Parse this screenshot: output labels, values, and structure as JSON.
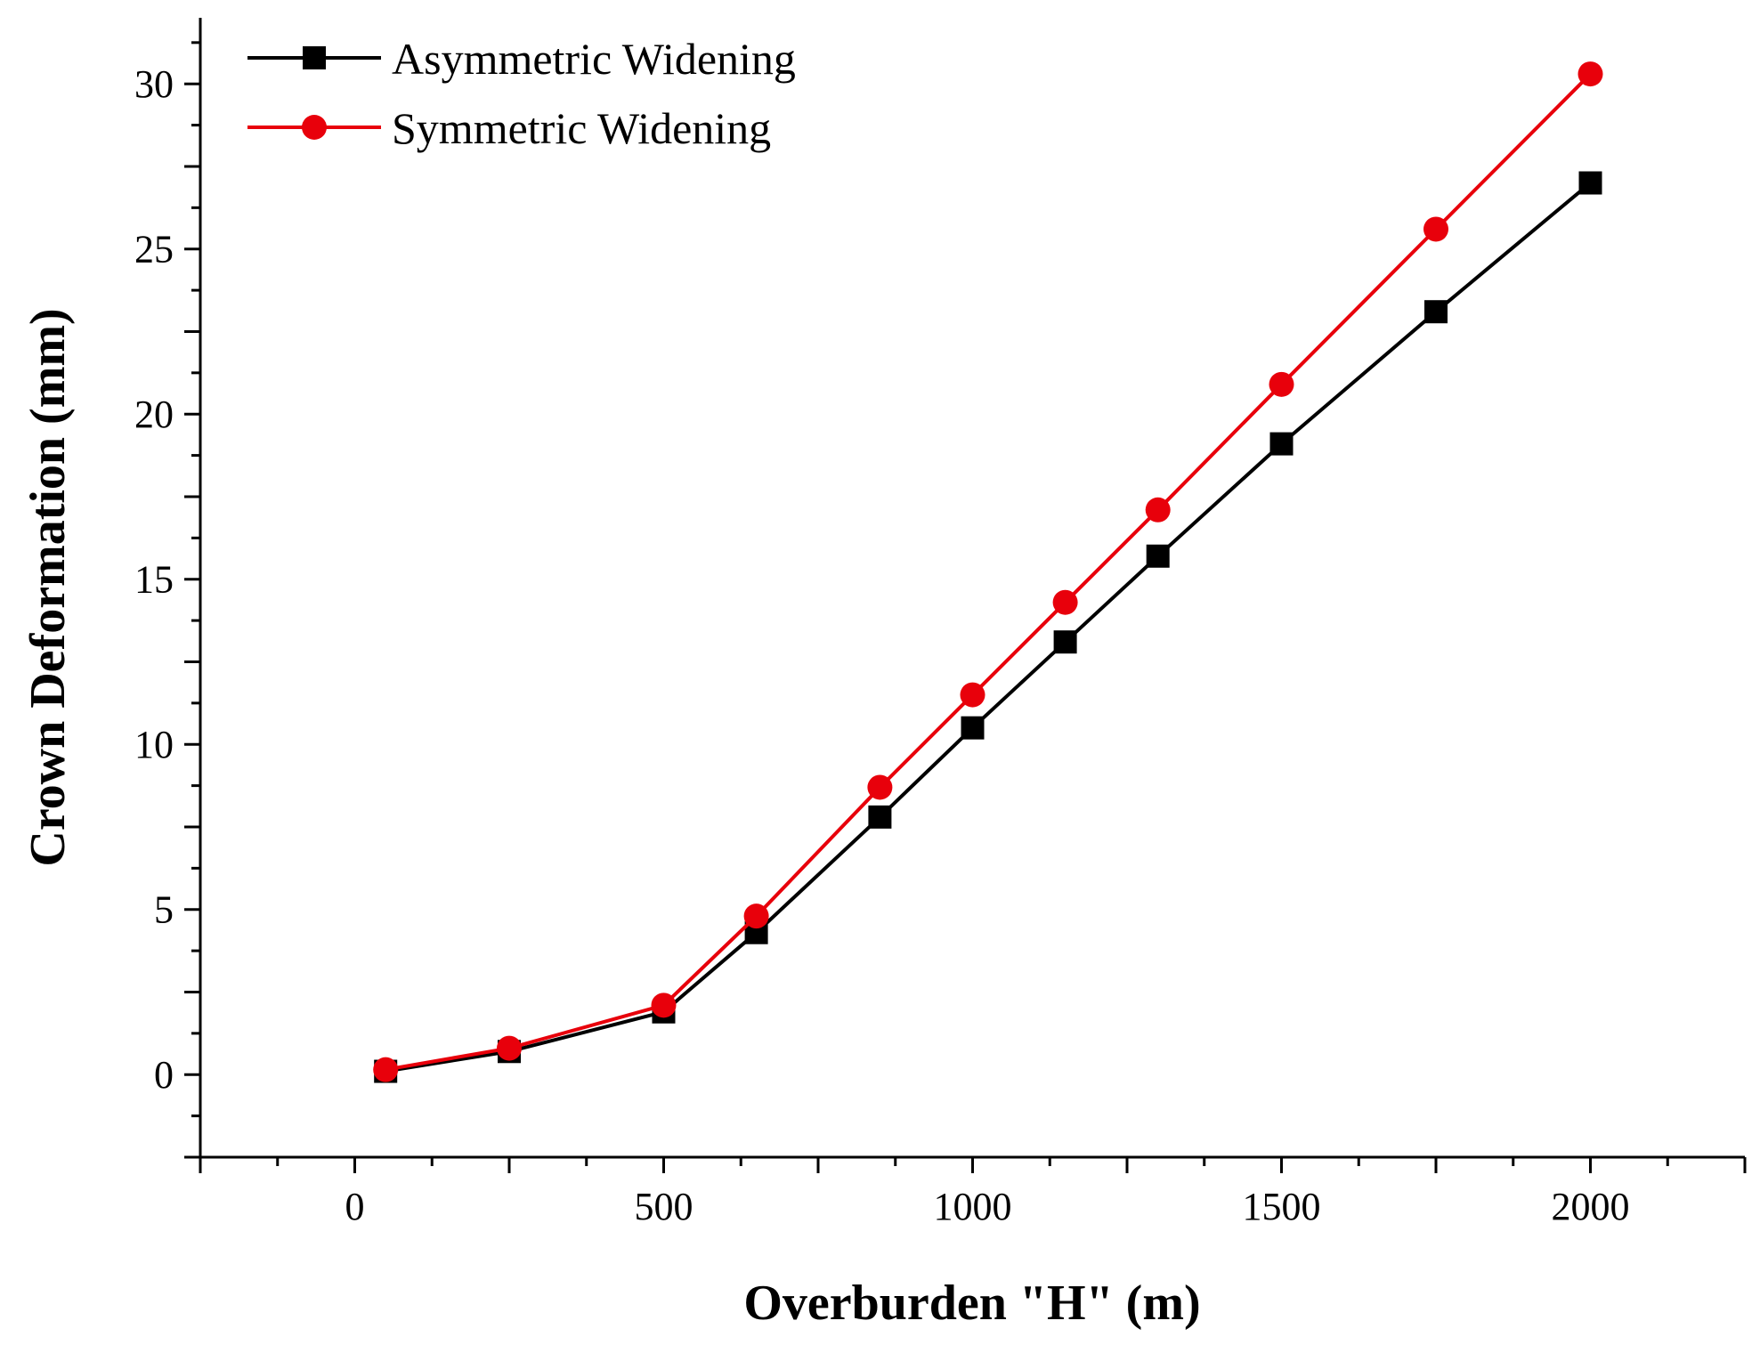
{
  "chart_data": {
    "type": "line",
    "title": "",
    "xlabel": "Overburden \"H\" (m)",
    "ylabel": "Crown Deformation (mm)",
    "xlim": [
      -250,
      2250
    ],
    "ylim": [
      -2.5,
      32
    ],
    "x_ticks": [
      0,
      500,
      1000,
      1500,
      2000
    ],
    "y_ticks": [
      0,
      5,
      10,
      15,
      20,
      25,
      30
    ],
    "x_minor_step": 125,
    "y_minor_step": 1.25,
    "grid": false,
    "legend_position": "top-left",
    "x": [
      50,
      250,
      500,
      650,
      850,
      1000,
      1150,
      1300,
      1500,
      1750,
      2000
    ],
    "series": [
      {
        "name": "Asymmetric Widening",
        "color": "#000000",
        "marker": "square",
        "values": [
          0.1,
          0.7,
          1.9,
          4.3,
          7.8,
          10.5,
          13.1,
          15.7,
          19.1,
          23.1,
          27.0
        ]
      },
      {
        "name": "Symmetric Widening",
        "color": "#e8000b",
        "marker": "circle",
        "values": [
          0.15,
          0.8,
          2.1,
          4.8,
          8.7,
          11.5,
          14.3,
          17.1,
          20.9,
          25.6,
          30.3
        ]
      }
    ]
  }
}
